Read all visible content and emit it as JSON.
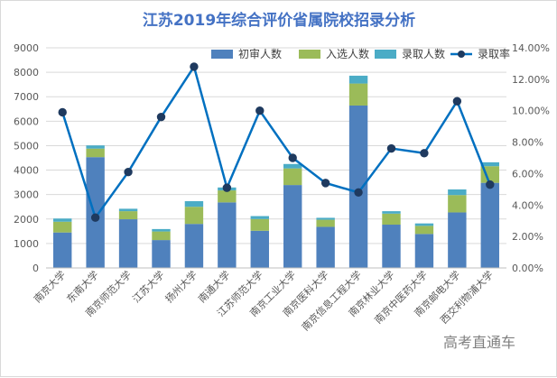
{
  "watermark": "高考直通车",
  "chart_data": {
    "type": "bar",
    "title": "江苏2019年综合评价省属院校招录分析",
    "categories": [
      "南京大学",
      "东南大学",
      "南京师范大学",
      "江苏大学",
      "扬州大学",
      "南通大学",
      "江苏师范大学",
      "南京工业大学",
      "南京医科大学",
      "南京信息工程大学",
      "南京林业大学",
      "南京中医药大学",
      "南京邮电大学",
      "西交利物浦大学"
    ],
    "series": [
      {
        "name": "初审人数",
        "kind": "stacked-bar",
        "color": "#4f81bd",
        "values": [
          1450,
          4530,
          1990,
          1140,
          1800,
          2680,
          1520,
          3390,
          1680,
          6640,
          1770,
          1390,
          2270,
          3480
        ]
      },
      {
        "name": "入选人数",
        "kind": "stacked-bar",
        "color": "#9bbb59",
        "values": [
          440,
          350,
          330,
          350,
          700,
          490,
          480,
          680,
          290,
          900,
          450,
          330,
          710,
          680
        ]
      },
      {
        "name": "录取人数",
        "kind": "stacked-bar",
        "color": "#4bacc6",
        "values": [
          130,
          130,
          100,
          100,
          230,
          120,
          120,
          180,
          80,
          320,
          100,
          100,
          230,
          160
        ]
      },
      {
        "name": "录取率",
        "kind": "line",
        "axis": "right",
        "color": "#0070c0",
        "values": [
          0.099,
          0.032,
          0.061,
          0.096,
          0.128,
          0.051,
          0.1,
          0.07,
          0.054,
          0.048,
          0.076,
          0.073,
          0.106,
          0.053
        ]
      }
    ],
    "y_left": {
      "min": 0,
      "max": 9000,
      "step": 1000,
      "ticks": [
        "0",
        "1000",
        "2000",
        "3000",
        "4000",
        "5000",
        "6000",
        "7000",
        "8000",
        "9000"
      ]
    },
    "y_right": {
      "min": 0,
      "max": 0.14,
      "step": 0.02,
      "ticks": [
        "0.00%",
        "2.00%",
        "4.00%",
        "6.00%",
        "8.00%",
        "10.00%",
        "12.00%",
        "14.00%"
      ]
    },
    "grid": true,
    "legend_position": "top-right"
  }
}
